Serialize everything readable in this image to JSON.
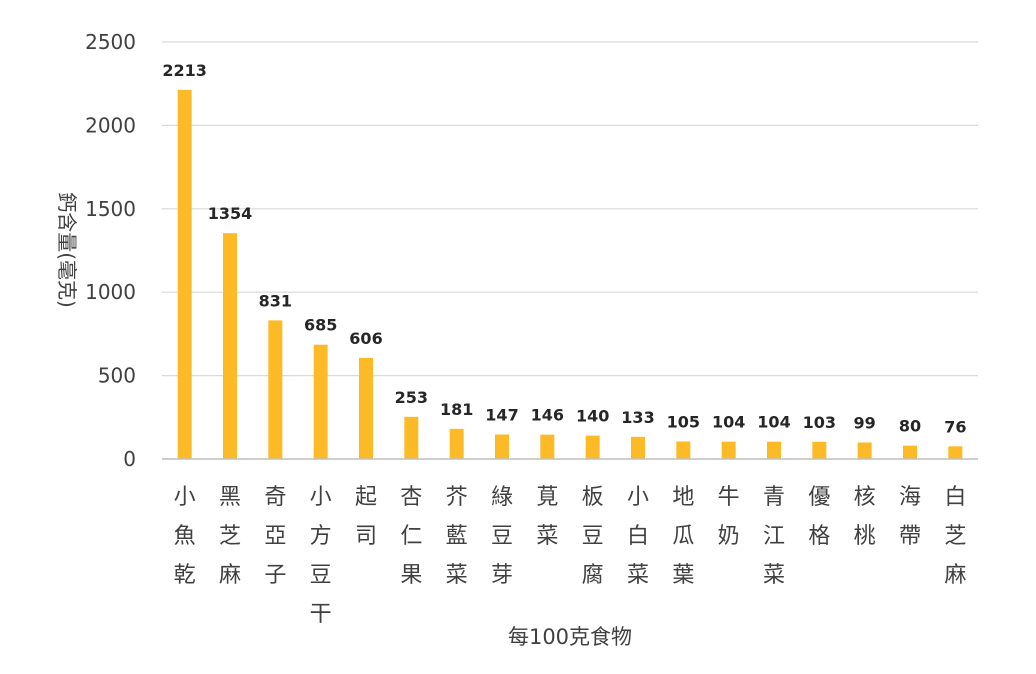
{
  "chart_data": {
    "type": "bar",
    "title": "",
    "xlabel": "每100克食物",
    "ylabel": "鈣含量(毫克)",
    "ylim": [
      0,
      2500
    ],
    "yticks": [
      0,
      500,
      1000,
      1500,
      2000,
      2500
    ],
    "grid": true,
    "legend": "none",
    "bar_color": "#FDBA27",
    "categories": [
      "小魚乾",
      "黑芝麻",
      "奇亞子",
      "小方豆干",
      "起司",
      "杏仁果",
      "芥藍菜",
      "綠豆芽",
      "莧菜",
      "板豆腐",
      "小白菜",
      "地瓜葉",
      "牛奶",
      "青江菜",
      "優格",
      "核桃",
      "海帶",
      "白芝麻"
    ],
    "values": [
      2213,
      1354,
      831,
      685,
      606,
      253,
      181,
      147,
      146,
      140,
      133,
      105,
      104,
      104,
      103,
      99,
      80,
      76
    ]
  },
  "colors": {
    "bar": "#FDBA27",
    "grid": "#D9D9D9",
    "axis": "#BFBFBF",
    "text": "#404040",
    "label": "#262626"
  }
}
